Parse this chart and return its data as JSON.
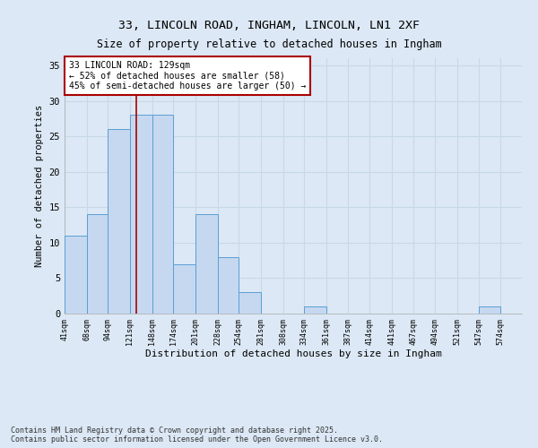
{
  "title_line1": "33, LINCOLN ROAD, INGHAM, LINCOLN, LN1 2XF",
  "title_line2": "Size of property relative to detached houses in Ingham",
  "xlabel": "Distribution of detached houses by size in Ingham",
  "ylabel": "Number of detached properties",
  "bar_values": [
    11,
    14,
    26,
    28,
    28,
    7,
    14,
    8,
    3,
    0,
    0,
    1,
    0,
    0,
    0,
    0,
    0,
    0,
    0,
    1,
    0
  ],
  "bin_edges": [
    41,
    68,
    94,
    121,
    148,
    174,
    201,
    228,
    254,
    281,
    308,
    334,
    361,
    387,
    414,
    441,
    467,
    494,
    521,
    547,
    574,
    600
  ],
  "tick_labels": [
    "41sqm",
    "68sqm",
    "94sqm",
    "121sqm",
    "148sqm",
    "174sqm",
    "201sqm",
    "228sqm",
    "254sqm",
    "281sqm",
    "308sqm",
    "334sqm",
    "361sqm",
    "387sqm",
    "414sqm",
    "441sqm",
    "467sqm",
    "494sqm",
    "521sqm",
    "547sqm",
    "574sqm"
  ],
  "bar_color": "#c5d8f0",
  "bar_edge_color": "#5a9fd4",
  "grid_color": "#c8d8e8",
  "vline_x": 129,
  "vline_color": "#aa0000",
  "annotation_text": "33 LINCOLN ROAD: 129sqm\n← 52% of detached houses are smaller (58)\n45% of semi-detached houses are larger (50) →",
  "annotation_box_color": "#ffffff",
  "annotation_box_edge": "#aa0000",
  "ylim": [
    0,
    36
  ],
  "yticks": [
    0,
    5,
    10,
    15,
    20,
    25,
    30,
    35
  ],
  "footer_text": "Contains HM Land Registry data © Crown copyright and database right 2025.\nContains public sector information licensed under the Open Government Licence v3.0.",
  "bg_color": "#dce8f5"
}
